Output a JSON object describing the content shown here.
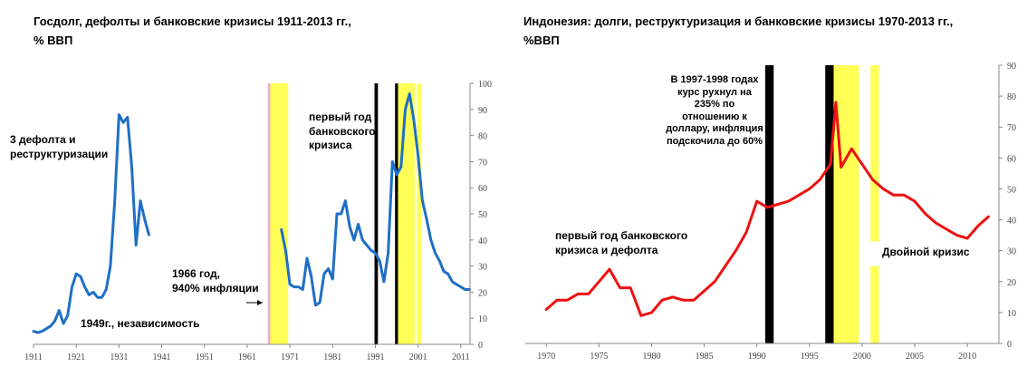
{
  "chart_data": [
    {
      "type": "line",
      "title": "Госдолг, дефолты и банковские кризисы 1911-2013 гг.,\n% ВВП",
      "xlim": [
        1911,
        2014
      ],
      "ylim": [
        0,
        100
      ],
      "x_ticks": [
        1911,
        1921,
        1931,
        1941,
        1951,
        1961,
        1971,
        1981,
        1991,
        2001,
        2011
      ],
      "y_ticks": [
        0,
        10,
        20,
        30,
        40,
        50,
        60,
        70,
        80,
        90,
        100
      ],
      "y_axis_side": "right",
      "line_color": "#1f6fc5",
      "series": [
        {
          "values_x": [
            1911,
            1912,
            1913,
            1914,
            1915,
            1916,
            1917,
            1918,
            1919,
            1920,
            1921,
            1922,
            1923,
            1924,
            1925,
            1926,
            1927,
            1928,
            1929,
            1930,
            1931,
            1932,
            1933,
            1934,
            1935,
            1936,
            1937,
            1938,
            1939,
            1940,
            1941
          ],
          "values_y": [
            5,
            4.5,
            5,
            6,
            7,
            9,
            13,
            8,
            11,
            22,
            27,
            26,
            22,
            19,
            20,
            18,
            18,
            21,
            30,
            55,
            88,
            85,
            87,
            68,
            38,
            55,
            48,
            42,
            null,
            null,
            null
          ]
        },
        {
          "values_x": [
            1969,
            1970,
            1971,
            1972,
            1973,
            1974,
            1975,
            1976,
            1977,
            1978,
            1979,
            1980,
            1981,
            1982,
            1983,
            1984,
            1985,
            1986,
            1987,
            1988,
            1989,
            1990,
            1991,
            1992,
            1993,
            1994,
            1995,
            1996,
            1997,
            1998,
            1999,
            2000,
            2001,
            2002,
            2003,
            2004,
            2005,
            2006,
            2007,
            2008,
            2009,
            2010,
            2011,
            2012,
            2013
          ],
          "values_y": [
            44,
            36,
            23,
            22,
            22,
            21,
            33,
            26,
            15,
            16,
            27,
            29,
            25,
            50,
            50,
            55,
            45,
            40,
            46,
            40,
            38,
            36,
            35,
            32,
            24,
            35,
            70,
            65,
            68,
            90,
            96,
            86,
            72,
            55,
            48,
            40,
            35,
            32,
            28,
            27,
            24,
            23,
            22,
            21,
            21
          ]
        }
      ],
      "shaded_periods": [
        {
          "from": 1965.9,
          "to": 1966.4,
          "color": "#f2a7c9"
        },
        {
          "from": 1966.4,
          "to": 1970.6,
          "color": "#ffff55"
        },
        {
          "from": 1990.8,
          "to": 1991.6,
          "color": "#000000"
        },
        {
          "from": 1995.6,
          "to": 1996.3,
          "color": "#000000"
        },
        {
          "from": 1996.3,
          "to": 2000.2,
          "color": "#ffff55"
        },
        {
          "from": 2000.7,
          "to": 2001.7,
          "color": "#ffff55"
        }
      ],
      "annotations": {
        "defaults": "3 дефолта и\nреструктуризации",
        "independence": "1949г., независимость",
        "inflation": "1966 год,\n940% инфляции",
        "first_bank_crisis": "первый год\nбанковского\nкризиса"
      }
    },
    {
      "type": "line",
      "title": "Индонезия: долги, реструктуризация и банковские кризисы 1970-2013 гг.,\n%ВВП",
      "xlim": [
        1968,
        2013
      ],
      "ylim": [
        0,
        90
      ],
      "x_ticks": [
        1970,
        1975,
        1980,
        1985,
        1990,
        1995,
        2000,
        2005,
        2010
      ],
      "y_ticks": [
        0,
        10,
        20,
        30,
        40,
        50,
        60,
        70,
        80,
        90
      ],
      "y_axis_side": "right",
      "line_color": "#ee1111",
      "series": [
        {
          "values_x": [
            1970,
            1971,
            1972,
            1973,
            1974,
            1975,
            1976,
            1977,
            1978,
            1979,
            1980,
            1981,
            1982,
            1983,
            1984,
            1985,
            1986,
            1987,
            1988,
            1989,
            1990,
            1991,
            1992,
            1993,
            1994,
            1995,
            1996,
            1997,
            1997.5,
            1998,
            1999,
            2000,
            2001,
            2002,
            2003,
            2004,
            2005,
            2006,
            2007,
            2008,
            2009,
            2010,
            2011,
            2012
          ],
          "values_y": [
            11,
            14,
            14,
            16,
            16,
            20,
            24,
            18,
            18,
            9,
            10,
            14,
            15,
            14,
            14,
            17,
            20,
            25,
            30,
            36,
            46,
            44,
            45,
            46,
            48,
            50,
            53,
            58,
            78,
            57,
            63,
            58,
            53,
            50,
            48,
            48,
            46,
            42,
            39,
            37,
            35,
            34,
            38,
            41
          ]
        }
      ],
      "shaded_periods": [
        {
          "from": 1990.8,
          "to": 1991.6,
          "color": "#000000"
        },
        {
          "from": 1996.5,
          "to": 1997.3,
          "color": "#000000"
        },
        {
          "from": 1997.3,
          "to": 1999.7,
          "color": "#ffff55"
        },
        {
          "from": 2000.8,
          "to": 2001.6,
          "color": "#ffff55",
          "gap": [
            25,
            33
          ]
        }
      ],
      "annotations": {
        "crash": "В 1997-1998 годах\nкурс рухнул на\n235% по\nотношению к\nдоллару, инфляция\nподскочила до 60%",
        "first_crisis": "первый год банковского\nкризиса и дефолта",
        "double_crisis": "Двойной кризис"
      }
    }
  ]
}
